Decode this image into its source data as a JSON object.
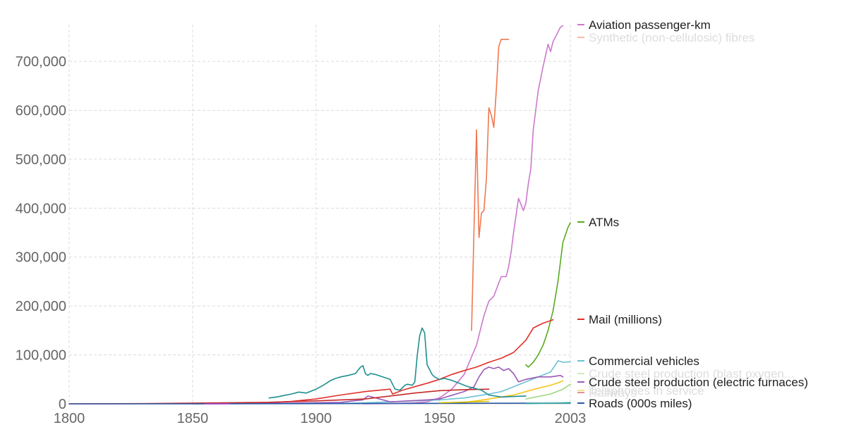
{
  "chart_data": {
    "type": "line",
    "title": "",
    "xlabel": "",
    "ylabel": "",
    "xlim": [
      1800,
      2003
    ],
    "ylim": [
      0,
      775000
    ],
    "grid": true,
    "legend_placement": "right",
    "x_ticks": [
      {
        "value": 1800,
        "label": "1800"
      },
      {
        "value": 1850,
        "label": "1850"
      },
      {
        "value": 1900,
        "label": "1900"
      },
      {
        "value": 1950,
        "label": "1950"
      },
      {
        "value": 2003,
        "label": "2003"
      }
    ],
    "y_ticks": [
      {
        "value": 0,
        "label": "0"
      },
      {
        "value": 100000,
        "label": "100,000"
      },
      {
        "value": 200000,
        "label": "200,000"
      },
      {
        "value": 300000,
        "label": "300,000"
      },
      {
        "value": 400000,
        "label": "400,000"
      },
      {
        "value": 500000,
        "label": "500,000"
      },
      {
        "value": 600000,
        "label": "600,000"
      },
      {
        "value": 700000,
        "label": "700,000"
      }
    ],
    "series": [
      {
        "name": "Aviation passenger-km",
        "color": "#cc79cc",
        "faded": false,
        "x": [
          1919,
          1930,
          1940,
          1945,
          1950,
          1955,
          1960,
          1965,
          1968,
          1970,
          1972,
          1975,
          1977,
          1978,
          1979,
          1980,
          1982,
          1984,
          1985,
          1986,
          1987,
          1988,
          1990,
          1992,
          1994,
          1995,
          1996,
          1998,
          1999,
          2000
        ],
        "y": [
          0,
          500,
          2000,
          4000,
          12000,
          30000,
          60000,
          120000,
          180000,
          210000,
          220000,
          260000,
          260000,
          280000,
          310000,
          350000,
          420000,
          395000,
          410000,
          450000,
          480000,
          560000,
          640000,
          690000,
          735000,
          720000,
          740000,
          760000,
          770000,
          773000
        ]
      },
      {
        "name": "Synthetic (non-cellulosic) fibres",
        "color": "#f07850",
        "faded": true,
        "x": [
          1963,
          1964,
          1965,
          1966,
          1967,
          1968,
          1969,
          1970,
          1971,
          1972,
          1973,
          1974,
          1975,
          1976,
          1977,
          1978
        ],
        "y": [
          150000,
          360000,
          560000,
          340000,
          390000,
          395000,
          460000,
          605000,
          590000,
          565000,
          640000,
          730000,
          745000,
          745000,
          745000,
          745000
        ]
      },
      {
        "name": "ATMs",
        "color": "#5aaa1e",
        "faded": false,
        "x": [
          1985,
          1986,
          1988,
          1990,
          1992,
          1994,
          1996,
          1998,
          2000,
          2002,
          2003
        ],
        "y": [
          80000,
          75000,
          85000,
          100000,
          120000,
          150000,
          190000,
          250000,
          330000,
          360000,
          370000
        ]
      },
      {
        "name": "Mail (millions)",
        "color": "#e0302a",
        "faded": false,
        "x": [
          1880,
          1890,
          1900,
          1910,
          1920,
          1930,
          1931,
          1935,
          1940,
          1945,
          1950,
          1955,
          1960,
          1965,
          1970,
          1975,
          1980,
          1985,
          1988,
          1990,
          1992,
          1995,
          1996
        ],
        "y": [
          2000,
          5000,
          10000,
          18000,
          25000,
          30000,
          20000,
          28000,
          35000,
          42000,
          50000,
          60000,
          68000,
          75000,
          85000,
          93000,
          105000,
          130000,
          155000,
          160000,
          165000,
          170000,
          172000
        ]
      },
      {
        "name": "Commercial vehicles",
        "color": "#6cc0d4",
        "faded": false,
        "x": [
          1910,
          1920,
          1930,
          1940,
          1950,
          1960,
          1970,
          1975,
          1980,
          1985,
          1990,
          1995,
          1997,
          1998,
          2000,
          2003
        ],
        "y": [
          1000,
          2000,
          4000,
          6000,
          8000,
          12000,
          20000,
          25000,
          35000,
          45000,
          55000,
          65000,
          80000,
          88000,
          85000,
          86000
        ]
      },
      {
        "name": "Crude steel production (blast oxygen...",
        "color": "#9ed77d",
        "faded": true,
        "x": [
          1985,
          1990,
          1995,
          2000,
          2003
        ],
        "y": [
          10000,
          15000,
          20000,
          30000,
          40000
        ]
      },
      {
        "name": "Crude steel production (electric furnaces)",
        "color": "#9b59b6",
        "faded": false,
        "x": [
          1850,
          1870,
          1890,
          1910,
          1915,
          1919,
          1921,
          1922,
          1930,
          1945,
          1950,
          1960,
          1964,
          1966,
          1968,
          1970,
          1972,
          1974,
          1976,
          1978,
          1980,
          1982,
          1985,
          1990,
          1995,
          1999,
          2000
        ],
        "y": [
          0,
          500,
          1500,
          3000,
          6000,
          8000,
          16000,
          15000,
          4000,
          8000,
          10000,
          25000,
          35000,
          55000,
          70000,
          75000,
          72000,
          75000,
          68000,
          72000,
          62000,
          45000,
          50000,
          55000,
          55000,
          58000,
          55000
        ]
      },
      {
        "name": "Telephones in service",
        "color": "#f5c518",
        "faded": true,
        "x": [
          1960,
          1965,
          1970,
          1975,
          1980,
          1985,
          1990,
          1995,
          1998,
          2000
        ],
        "y": [
          3000,
          6000,
          10000,
          14000,
          18000,
          25000,
          32000,
          38000,
          43000,
          47000
        ]
      },
      {
        "name": "Railways",
        "color": "#c62828",
        "faded": true,
        "x": [
          1800,
          1830,
          1850,
          1880,
          1900,
          1920,
          1930,
          1940,
          1950,
          1960,
          1970
        ],
        "y": [
          0,
          500,
          1500,
          3000,
          6000,
          10000,
          16000,
          22000,
          27000,
          29000,
          30000
        ]
      },
      {
        "name": "Roads (000s miles)",
        "color": "#2b5aa8",
        "faded": false,
        "x": [
          1800,
          1850,
          1900,
          1950,
          2000,
          2003
        ],
        "y": [
          0,
          0,
          500,
          1000,
          1500,
          1500
        ]
      },
      {
        "name": "",
        "color": "#1f8f8f",
        "faded": false,
        "x": [
          1881,
          1884,
          1887,
          1890,
          1893,
          1896,
          1898,
          1900,
          1903,
          1906,
          1908,
          1910,
          1913,
          1916,
          1918,
          1919,
          1920,
          1921,
          1922,
          1924,
          1927,
          1930,
          1932,
          1934,
          1936,
          1937,
          1939,
          1940,
          1941,
          1942,
          1943,
          1944,
          1945,
          1946,
          1947,
          1948,
          1950,
          1952,
          1955,
          1958,
          1961,
          1964,
          1967,
          1970,
          1975,
          1980,
          1985
        ],
        "y": [
          12000,
          14000,
          17000,
          20000,
          24000,
          22000,
          26000,
          30000,
          38000,
          48000,
          52000,
          55000,
          58000,
          62000,
          75000,
          78000,
          62000,
          58000,
          62000,
          60000,
          55000,
          50000,
          30000,
          28000,
          38000,
          40000,
          38000,
          45000,
          100000,
          140000,
          155000,
          145000,
          80000,
          70000,
          60000,
          55000,
          50000,
          52000,
          48000,
          42000,
          36000,
          32000,
          28000,
          18000,
          14000,
          15000,
          16000
        ]
      },
      {
        "name": "",
        "color": "#2bb0a0",
        "faded": false,
        "x": [
          1985,
          1990,
          1995,
          2000,
          2003
        ],
        "y": [
          500,
          1000,
          1500,
          2000,
          2500
        ]
      },
      {
        "name": "",
        "color": "#d4c000",
        "faded": false,
        "x": [
          1950,
          1960,
          1970
        ],
        "y": [
          2000,
          3500,
          5000
        ]
      },
      {
        "name": "",
        "color": "#b04fd0",
        "faded": false,
        "x": [
          1855,
          1865
        ],
        "y": [
          0,
          0
        ]
      }
    ]
  }
}
